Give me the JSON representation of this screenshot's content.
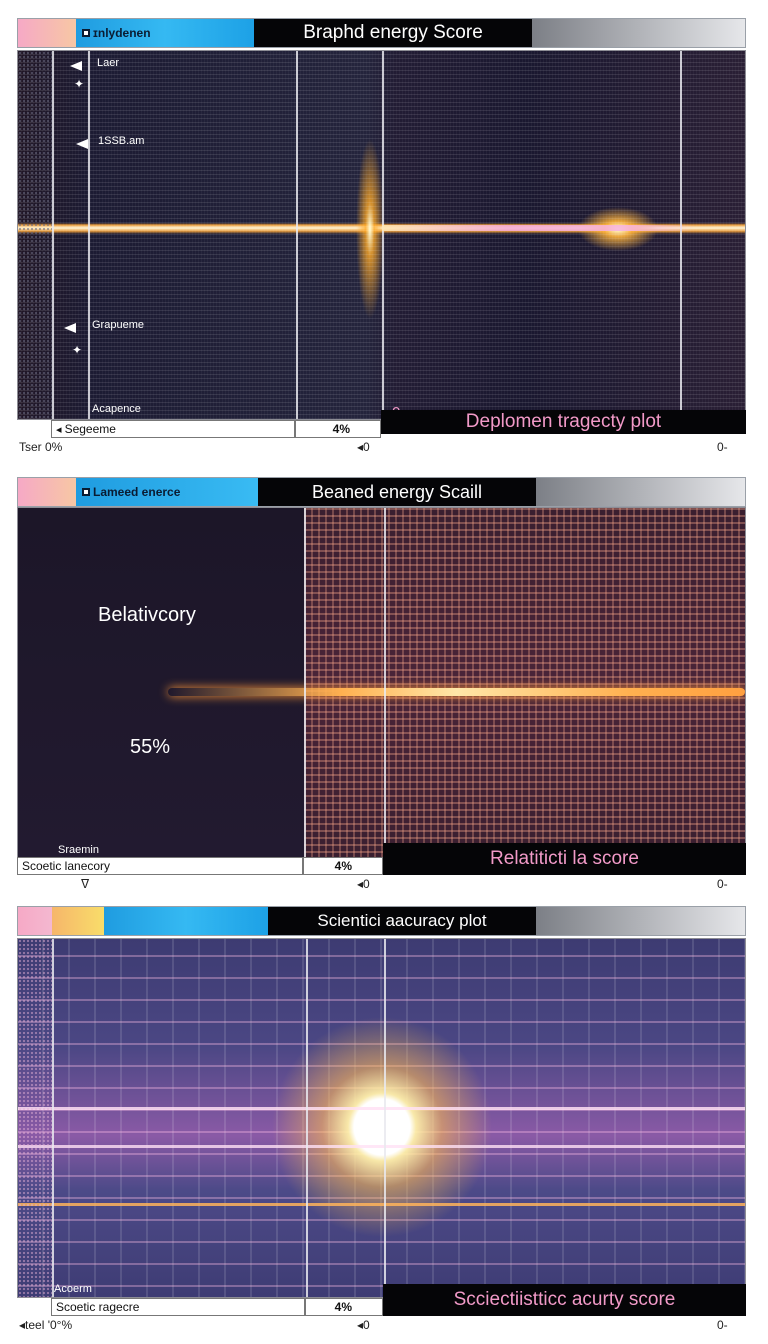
{
  "panels": [
    {
      "header": {
        "tab_label": "ɪnlydenen",
        "title": "Braphd energy Score"
      },
      "plot_labels": {
        "l1": "Laer",
        "l2": "1SSB.am",
        "l3": "Grapueme",
        "l4": "Acapence"
      },
      "bottom": {
        "left_label": "Segeeme",
        "mid_value": "4%",
        "zero": "0",
        "caption": "Deplomen tragecty plot"
      },
      "axis": {
        "left": "Tser  0%",
        "mid": "◂0",
        "right": "0-"
      }
    },
    {
      "header": {
        "tab_label": "Lameed enerce",
        "title": "Beaned energy Scaill"
      },
      "plot_labels": {
        "big_label": "Belativcory",
        "percent": "55%",
        "small": "Sraemin"
      },
      "bottom": {
        "left_label": "Scoetic lanecory",
        "mid_value": "4%",
        "zero": "0",
        "caption": "Relatiticti la score"
      },
      "axis": {
        "left": "ᐁ",
        "mid": "◂0",
        "right": "0-"
      }
    },
    {
      "header": {
        "tab_label": "",
        "title": "Scientici aacuracy plot"
      },
      "plot_labels": {
        "small": "Acoerm"
      },
      "bottom": {
        "left_label": "Scoetic ragecre",
        "mid_value": "4%",
        "caption": "Scciectiistticc acurty score"
      },
      "axis": {
        "left": "◂teel '0°%",
        "mid": "◂0",
        "right": "0-"
      }
    }
  ],
  "colors": {
    "pink": "#f29ac8",
    "blue": "#1da1e6",
    "dark": "#050507"
  }
}
